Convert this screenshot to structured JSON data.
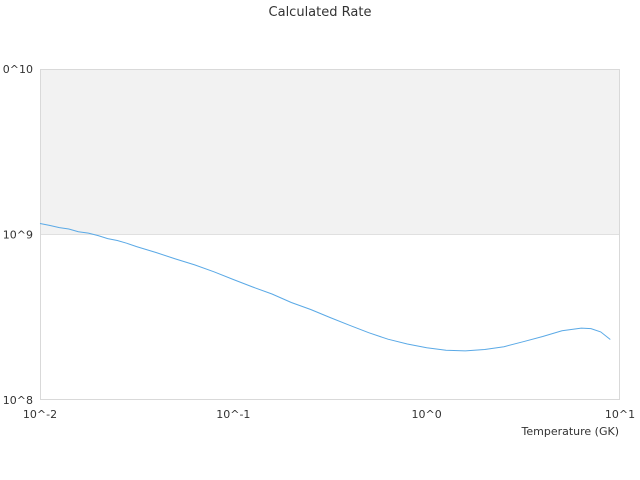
{
  "chart_data": {
    "type": "line",
    "title": "Calculated Rate",
    "xlabel": "Temperature (GK)",
    "ylabel": "",
    "x_scale": "log",
    "y_scale": "log",
    "xlim": [
      0.01,
      10
    ],
    "ylim": [
      100000000,
      10000000000
    ],
    "x_tick_labels": [
      "10^-2",
      "10^-1",
      "10^0",
      "10^1"
    ],
    "y_tick_labels": [
      "10^8",
      "10^9",
      "0^10"
    ],
    "highlight_band": {
      "y_from": 1000000000,
      "y_to": 10000000000,
      "color": "#f2f2f2"
    },
    "grid": "none",
    "legend": "none",
    "series": [
      {
        "color": "#5aa9e6",
        "x": [
          0.01,
          0.0112,
          0.0126,
          0.0141,
          0.0158,
          0.0178,
          0.02,
          0.0224,
          0.0251,
          0.0282,
          0.0316,
          0.0398,
          0.0501,
          0.0631,
          0.0794,
          0.1,
          0.1259,
          0.1585,
          0.1995,
          0.2512,
          0.3162,
          0.3981,
          0.5012,
          0.631,
          0.7943,
          1.0,
          1.259,
          1.585,
          1.995,
          2.512,
          3.162,
          3.981,
          5.012,
          6.31,
          7.08,
          7.943,
          8.913
        ],
        "y": [
          1165000000.0,
          1135000000.0,
          1100000000.0,
          1080000000.0,
          1040000000.0,
          1020000000.0,
          985000000.0,
          945000000.0,
          920000000.0,
          885000000.0,
          845000000.0,
          778000000.0,
          712000000.0,
          655000000.0,
          595000000.0,
          535000000.0,
          482000000.0,
          437000000.0,
          388000000.0,
          352000000.0,
          315000000.0,
          283000000.0,
          255000000.0,
          233000000.0,
          218000000.0,
          207000000.0,
          200000000.0,
          198000000.0,
          202000000.0,
          210000000.0,
          225000000.0,
          242000000.0,
          262000000.0,
          272000000.0,
          270000000.0,
          258000000.0,
          232000000.0
        ]
      }
    ]
  }
}
